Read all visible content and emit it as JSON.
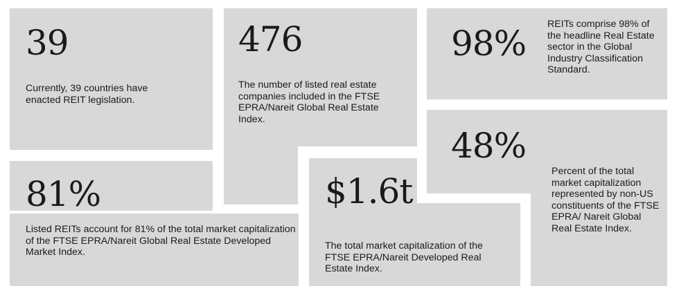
{
  "stats": [
    {
      "id": "countries",
      "value": "39",
      "description": "Currently, 39 countries have enacted REIT legislation."
    },
    {
      "id": "companies",
      "value": "476",
      "description": "The number of listed real estate companies included in the FTSE EPRA/Nareit Global Real Estate Index."
    },
    {
      "id": "gics",
      "value": "98%",
      "description": "REITs comprise 98% of the headline Real Estate sector in the Global Industry Classification Standard."
    },
    {
      "id": "non-us",
      "value": "48%",
      "description": "Percent of the total market capitalization represented by non-US constituents of the FTSE EPRA/ Nareit Global Real Estate Index."
    },
    {
      "id": "listed-reits",
      "value": "81%",
      "description": "Listed REITs account for 81% of the total market capitalization of the FTSE EPRA/Nareit Global Real Estate Developed Market Index."
    },
    {
      "id": "market-cap",
      "value": "$1.6t",
      "description": "The total market capitalization of the FTSE EPRA/Nareit Developed Real Estate Index."
    }
  ],
  "colors": {
    "panel": "#d9d8d8",
    "text": "#1a1a1a",
    "background": "#ffffff"
  }
}
